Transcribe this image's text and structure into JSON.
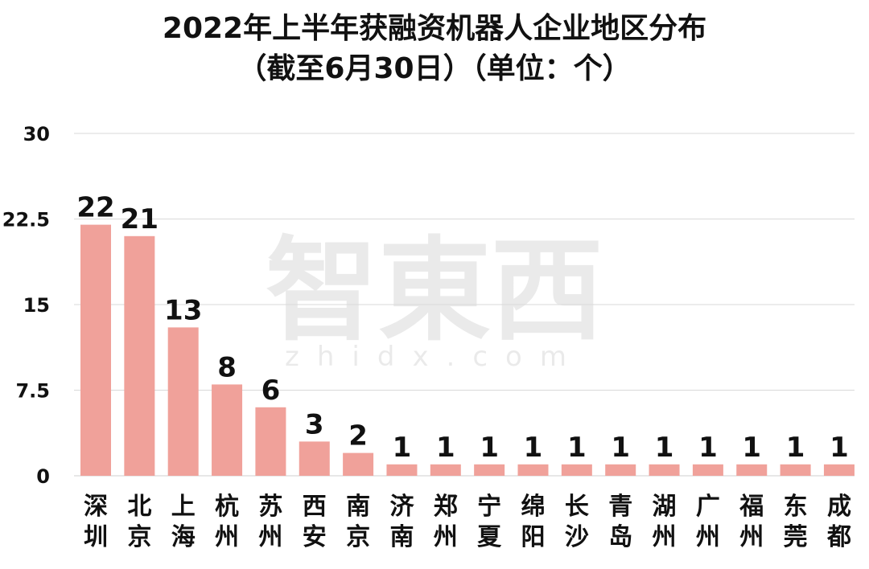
{
  "title_line1": "2022年上半年获融资机器人企业地区分布",
  "title_line2": "（截至6月30日）（单位：个）",
  "chart_data": {
    "type": "bar",
    "categories": [
      "深圳",
      "北京",
      "上海",
      "杭州",
      "苏州",
      "西安",
      "南京",
      "济南",
      "郑州",
      "宁夏",
      "绵阳",
      "长沙",
      "青岛",
      "湖州",
      "广州",
      "福州",
      "东莞",
      "成都"
    ],
    "values": [
      22,
      21,
      13,
      8,
      6,
      3,
      2,
      1,
      1,
      1,
      1,
      1,
      1,
      1,
      1,
      1,
      1,
      1
    ],
    "yticks": [
      "0",
      "7.5",
      "15",
      "22.5",
      "30"
    ],
    "ylim": [
      0,
      30
    ],
    "bar_color": "#f0a19a",
    "grid": true
  },
  "watermark": {
    "logo": "智東西",
    "url": "zhidx.com"
  }
}
